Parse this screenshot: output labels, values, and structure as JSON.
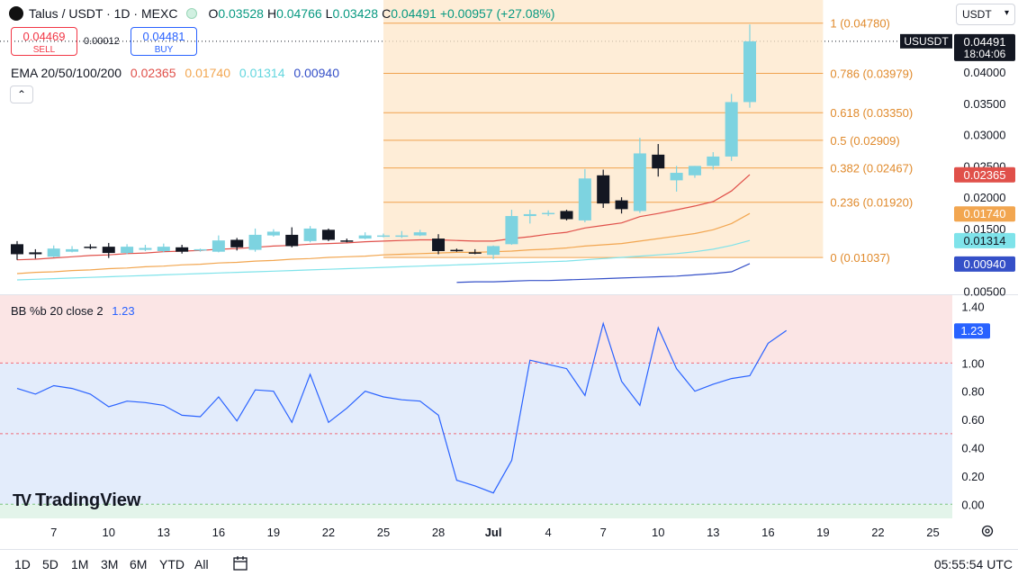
{
  "header": {
    "symbol": "Talus / USDT · 1D · MEXC",
    "o_label": "O",
    "o_value": "0.03528",
    "h_label": "H",
    "h_value": "0.04766",
    "l_label": "L",
    "l_value": "0.03428",
    "c_label": "C",
    "c_value": "0.04491",
    "change": "+0.00957 (+27.08%)"
  },
  "trade": {
    "sell_price": "0.04469",
    "sell_label": "SELL",
    "spread": "0.00012",
    "buy_price": "0.04481",
    "buy_label": "BUY"
  },
  "ema_legend": {
    "label": "EMA 20/50/100/200",
    "v20": "0.02365",
    "v50": "0.01740",
    "v100": "0.01314",
    "v200": "0.00940"
  },
  "currency_select": "USDT",
  "indicator": {
    "label": "BB %b 20 close 2",
    "value": "1.23"
  },
  "brand": "TradingView",
  "timeframes": [
    "1D",
    "5D",
    "1M",
    "3M",
    "6M",
    "YTD",
    "All"
  ],
  "clock": "05:55:54 UTC",
  "colors": {
    "up": "#7dd3e0",
    "down": "#131722",
    "ema20": "#e0504a",
    "ema50": "#f2a650",
    "ema100": "#7fe3ea",
    "ema200": "#3550c8",
    "fib": "#f0a24e",
    "bb": "#2962ff"
  },
  "chart_data": [
    {
      "type": "candlestick",
      "title": "Talus / USDT · 1D · MEXC",
      "x_tick_labels": [
        "7",
        "10",
        "13",
        "16",
        "19",
        "22",
        "25",
        "28",
        "Jul",
        "4",
        "7",
        "10",
        "13",
        "16",
        "19",
        "22",
        "25"
      ],
      "y_tick_labels": [
        "0.04000",
        "0.03500",
        "0.03000",
        "0.02500",
        "0.02000",
        "0.01500",
        "0.00500"
      ],
      "ylim": [
        0.0045,
        0.0515
      ],
      "day_index_range": [
        0,
        37
      ],
      "candles": [
        {
          "o": 0.0125,
          "h": 0.013,
          "l": 0.01,
          "c": 0.0109
        },
        {
          "o": 0.0112,
          "h": 0.0117,
          "l": 0.0102,
          "c": 0.0109
        },
        {
          "o": 0.0105,
          "h": 0.0123,
          "l": 0.0104,
          "c": 0.0118
        },
        {
          "o": 0.0113,
          "h": 0.0122,
          "l": 0.0112,
          "c": 0.0117
        },
        {
          "o": 0.0121,
          "h": 0.0125,
          "l": 0.0117,
          "c": 0.0119
        },
        {
          "o": 0.0121,
          "h": 0.0127,
          "l": 0.0103,
          "c": 0.0111
        },
        {
          "o": 0.0111,
          "h": 0.0125,
          "l": 0.0109,
          "c": 0.0121
        },
        {
          "o": 0.0116,
          "h": 0.0124,
          "l": 0.0114,
          "c": 0.0119
        },
        {
          "o": 0.0114,
          "h": 0.0126,
          "l": 0.0112,
          "c": 0.0121
        },
        {
          "o": 0.012,
          "h": 0.0124,
          "l": 0.011,
          "c": 0.0113
        },
        {
          "o": 0.0116,
          "h": 0.0118,
          "l": 0.0113,
          "c": 0.0117
        },
        {
          "o": 0.0113,
          "h": 0.0139,
          "l": 0.0112,
          "c": 0.0131
        },
        {
          "o": 0.0132,
          "h": 0.0135,
          "l": 0.0115,
          "c": 0.012
        },
        {
          "o": 0.0116,
          "h": 0.015,
          "l": 0.0113,
          "c": 0.014
        },
        {
          "o": 0.0139,
          "h": 0.0149,
          "l": 0.0137,
          "c": 0.0145
        },
        {
          "o": 0.014,
          "h": 0.0152,
          "l": 0.012,
          "c": 0.0122
        },
        {
          "o": 0.013,
          "h": 0.0154,
          "l": 0.0128,
          "c": 0.015
        },
        {
          "o": 0.0148,
          "h": 0.015,
          "l": 0.013,
          "c": 0.0132
        },
        {
          "o": 0.0131,
          "h": 0.0134,
          "l": 0.0128,
          "c": 0.0129
        },
        {
          "o": 0.0134,
          "h": 0.0144,
          "l": 0.0133,
          "c": 0.0139
        },
        {
          "o": 0.0139,
          "h": 0.0142,
          "l": 0.0136,
          "c": 0.0139
        },
        {
          "o": 0.0139,
          "h": 0.0146,
          "l": 0.0135,
          "c": 0.0139
        },
        {
          "o": 0.0139,
          "h": 0.0148,
          "l": 0.0138,
          "c": 0.0144
        },
        {
          "o": 0.0134,
          "h": 0.0141,
          "l": 0.0109,
          "c": 0.0114
        },
        {
          "o": 0.0116,
          "h": 0.0118,
          "l": 0.0113,
          "c": 0.0115
        },
        {
          "o": 0.0112,
          "h": 0.0117,
          "l": 0.0109,
          "c": 0.011
        },
        {
          "o": 0.0108,
          "h": 0.0123,
          "l": 0.0101,
          "c": 0.0122
        },
        {
          "o": 0.0125,
          "h": 0.018,
          "l": 0.0124,
          "c": 0.017
        },
        {
          "o": 0.017,
          "h": 0.018,
          "l": 0.0158,
          "c": 0.0173
        },
        {
          "o": 0.0173,
          "h": 0.0179,
          "l": 0.017,
          "c": 0.0175
        },
        {
          "o": 0.0178,
          "h": 0.018,
          "l": 0.0163,
          "c": 0.0165
        },
        {
          "o": 0.0163,
          "h": 0.0245,
          "l": 0.016,
          "c": 0.023
        },
        {
          "o": 0.0235,
          "h": 0.0244,
          "l": 0.0183,
          "c": 0.019
        },
        {
          "o": 0.0195,
          "h": 0.02,
          "l": 0.0174,
          "c": 0.0181
        },
        {
          "o": 0.0178,
          "h": 0.0295,
          "l": 0.0175,
          "c": 0.027
        },
        {
          "o": 0.0268,
          "h": 0.0285,
          "l": 0.0233,
          "c": 0.0246
        },
        {
          "o": 0.0227,
          "h": 0.025,
          "l": 0.0209,
          "c": 0.0239
        },
        {
          "o": 0.0235,
          "h": 0.025,
          "l": 0.0231,
          "c": 0.025
        },
        {
          "o": 0.025,
          "h": 0.0272,
          "l": 0.0244,
          "c": 0.0265
        },
        {
          "o": 0.0265,
          "h": 0.0365,
          "l": 0.0258,
          "c": 0.0352
        },
        {
          "o": 0.0352,
          "h": 0.0476,
          "l": 0.0343,
          "c": 0.0449
        }
      ],
      "ema": [
        {
          "name": "EMA 20",
          "start": 0,
          "values": [
            0.01,
            0.0101,
            0.0103,
            0.0105,
            0.0107,
            0.0108,
            0.011,
            0.0111,
            0.0113,
            0.0114,
            0.0115,
            0.0117,
            0.0118,
            0.012,
            0.0122,
            0.0123,
            0.0125,
            0.0126,
            0.0127,
            0.0129,
            0.013,
            0.0131,
            0.0132,
            0.0132,
            0.0131,
            0.013,
            0.013,
            0.0134,
            0.0137,
            0.0141,
            0.0144,
            0.0151,
            0.0155,
            0.0159,
            0.0169,
            0.0174,
            0.018,
            0.0186,
            0.0193,
            0.021,
            0.0236
          ]
        },
        {
          "name": "EMA 50",
          "start": 0,
          "values": [
            0.0078,
            0.008,
            0.0081,
            0.0083,
            0.0084,
            0.0086,
            0.0087,
            0.0089,
            0.009,
            0.0092,
            0.0093,
            0.0095,
            0.0096,
            0.0098,
            0.0099,
            0.0101,
            0.0102,
            0.0104,
            0.0105,
            0.0106,
            0.0108,
            0.0109,
            0.011,
            0.0111,
            0.0112,
            0.0112,
            0.0113,
            0.0114,
            0.0116,
            0.0117,
            0.0119,
            0.0122,
            0.0124,
            0.0126,
            0.013,
            0.0134,
            0.0138,
            0.0142,
            0.0148,
            0.0158,
            0.0174
          ]
        },
        {
          "name": "EMA 100",
          "start": 0,
          "values": [
            0.0068,
            0.0069,
            0.007,
            0.0071,
            0.0072,
            0.0073,
            0.0074,
            0.0075,
            0.0076,
            0.0077,
            0.0078,
            0.0079,
            0.008,
            0.0081,
            0.0082,
            0.0083,
            0.0084,
            0.0085,
            0.0086,
            0.0087,
            0.0088,
            0.0089,
            0.009,
            0.0091,
            0.0092,
            0.0093,
            0.0094,
            0.0095,
            0.0096,
            0.0097,
            0.0098,
            0.01,
            0.0102,
            0.0104,
            0.0106,
            0.0108,
            0.011,
            0.0113,
            0.0117,
            0.0123,
            0.0131
          ]
        },
        {
          "name": "EMA 200",
          "start": 24,
          "values": [
            0.0064,
            0.0065,
            0.0065,
            0.0066,
            0.0067,
            0.0067,
            0.0068,
            0.0069,
            0.007,
            0.0071,
            0.0072,
            0.0073,
            0.0074,
            0.0076,
            0.0078,
            0.0081,
            0.0094
          ]
        }
      ],
      "fib_levels": [
        {
          "ratio": "1",
          "price": 0.0478,
          "label": "1 (0.04780)"
        },
        {
          "ratio": "0.786",
          "price": 0.03979,
          "label": "0.786 (0.03979)"
        },
        {
          "ratio": "0.618",
          "price": 0.0335,
          "label": "0.618 (0.03350)"
        },
        {
          "ratio": "0.5",
          "price": 0.02909,
          "label": "0.5 (0.02909)"
        },
        {
          "ratio": "0.382",
          "price": 0.02467,
          "label": "0.382 (0.02467)"
        },
        {
          "ratio": "0.236",
          "price": 0.0192,
          "label": "0.236 (0.01920)"
        },
        {
          "ratio": "0",
          "price": 0.01037,
          "label": "0 (0.01037)"
        }
      ],
      "fib_day_range": [
        20,
        44
      ],
      "price_badges": [
        {
          "label": "USUSDT",
          "value": 0.04491,
          "text": "0.04491",
          "sub": "18:04:06"
        },
        {
          "value": 0.02365,
          "text": "0.02365"
        },
        {
          "value": 0.0174,
          "text": "0.01740"
        },
        {
          "value": 0.01314,
          "text": "0.01314"
        },
        {
          "value": 0.0094,
          "text": "0.00940"
        }
      ]
    },
    {
      "type": "line",
      "title": "BB %b 20 close 2",
      "ylim": [
        -0.1,
        1.48
      ],
      "y_tick_labels": [
        "1.40",
        "1.00",
        "0.80",
        "0.60",
        "0.40",
        "0.20",
        "0.00"
      ],
      "bands": {
        "upper": 1.0,
        "middle": 0.5,
        "lower": 0.0
      },
      "series": [
        {
          "name": "BB %b",
          "start": 0,
          "values": [
            0.82,
            0.78,
            0.84,
            0.82,
            0.78,
            0.69,
            0.73,
            0.72,
            0.7,
            0.63,
            0.62,
            0.76,
            0.59,
            0.81,
            0.8,
            0.58,
            0.92,
            0.58,
            0.68,
            0.8,
            0.76,
            0.74,
            0.73,
            0.63,
            0.17,
            0.13,
            0.08,
            0.31,
            1.02,
            0.99,
            0.96,
            0.77,
            1.28,
            0.87,
            0.7,
            1.25,
            0.96,
            0.8,
            0.85,
            0.89,
            0.91,
            1.14,
            1.23
          ]
        }
      ],
      "current_value": "1.23"
    }
  ]
}
